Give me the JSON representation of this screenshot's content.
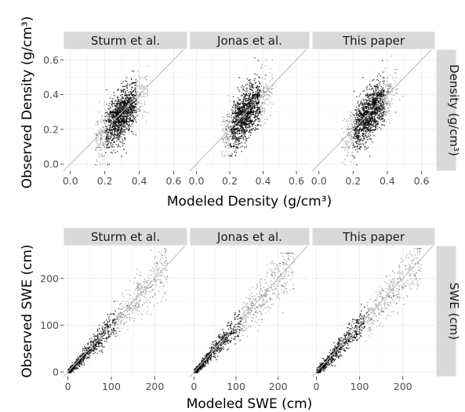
{
  "chart_data": [
    {
      "type": "scatter",
      "row_strip_label": "Density (g/cm³)",
      "xlabel": "Modeled Density (g/cm³)",
      "ylabel": "Observed Density (g/cm³)",
      "xlim": [
        -0.04,
        0.68
      ],
      "ylim": [
        -0.04,
        0.66
      ],
      "x_ticks": [
        0.0,
        0.2,
        0.4,
        0.6
      ],
      "y_ticks": [
        0.0,
        0.2,
        0.4,
        0.6
      ],
      "x_tick_labels": [
        "0.0",
        "0.2",
        "0.4",
        "0.6"
      ],
      "y_tick_labels": [
        "0.0",
        "0.2",
        "0.4",
        "0.6"
      ],
      "reference_line": "y = x",
      "panels": [
        {
          "label": "Sturm et al.",
          "x_range": [
            0.14,
            0.45
          ],
          "y_range": [
            0.0,
            0.63
          ]
        },
        {
          "label": "Jonas et al.",
          "x_range": [
            0.15,
            0.5
          ],
          "y_range": [
            0.05,
            0.63
          ]
        },
        {
          "label": "This paper",
          "x_range": [
            0.13,
            0.55
          ],
          "y_range": [
            0.0,
            0.63
          ]
        }
      ]
    },
    {
      "type": "scatter",
      "row_strip_label": "SWE (cm)",
      "xlabel": "Modeled SWE (cm)",
      "ylabel": "Observed SWE (cm)",
      "xlim": [
        -10,
        275
      ],
      "ylim": [
        -10,
        270
      ],
      "x_ticks": [
        0,
        100,
        200
      ],
      "y_ticks": [
        0,
        100,
        200
      ],
      "x_tick_labels": [
        "0",
        "100",
        "200"
      ],
      "y_tick_labels": [
        "0",
        "100",
        "200"
      ],
      "reference_line": "y = x",
      "panels": [
        {
          "label": "Sturm et al.",
          "x_range": [
            0,
            240
          ],
          "y_range": [
            0,
            265
          ]
        },
        {
          "label": "Jonas et al.",
          "x_range": [
            0,
            250
          ],
          "y_range": [
            0,
            255
          ]
        },
        {
          "label": "This paper",
          "x_range": [
            0,
            255
          ],
          "y_range": [
            0,
            265
          ]
        }
      ]
    }
  ]
}
